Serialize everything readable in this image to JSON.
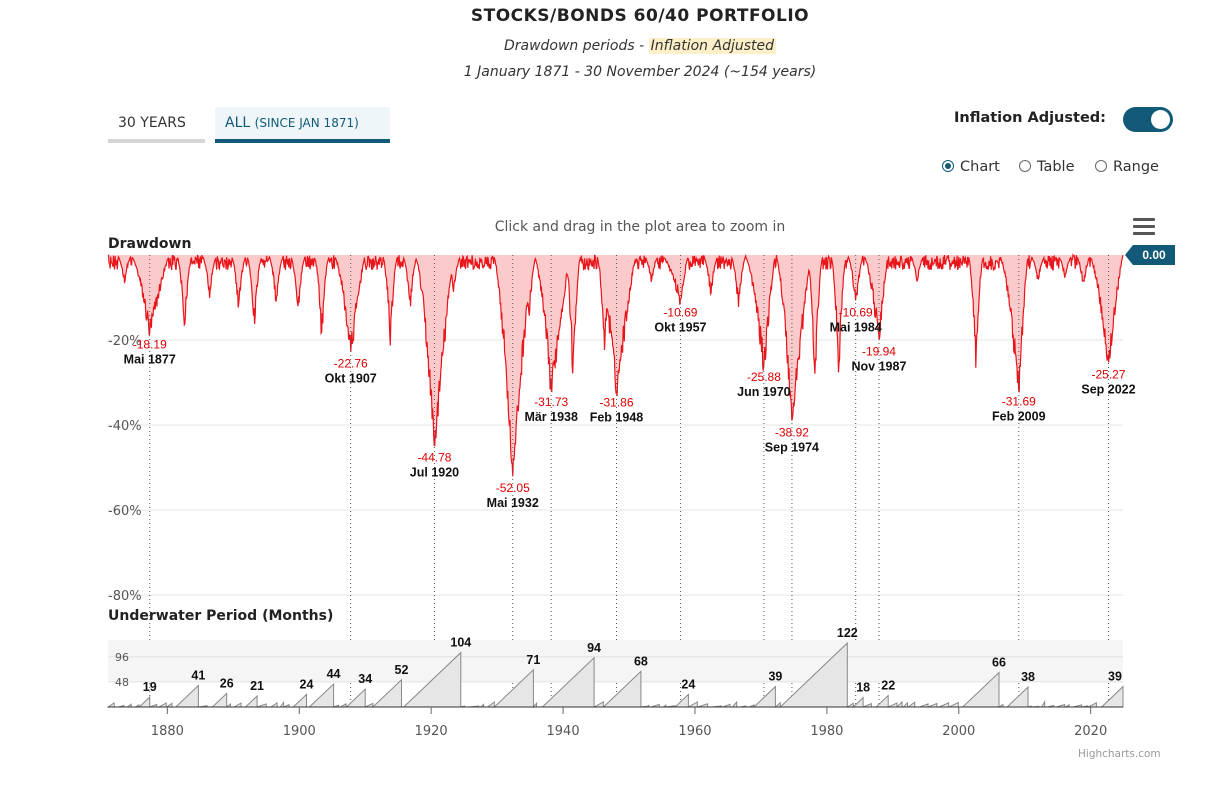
{
  "header": {
    "title": "STOCKS/BONDS 60/40 PORTFOLIO",
    "subtitle_prefix": "Drawdown periods - ",
    "subtitle_highlight": "Inflation Adjusted",
    "period": "1 January 1871 - 30 November 2024 (~154 years)"
  },
  "tabs": {
    "tab_30": "30 YEARS",
    "tab_all_main": "ALL",
    "tab_all_small": "(SINCE JAN 1871)"
  },
  "toggle": {
    "label": "Inflation Adjusted:",
    "checked": true
  },
  "view_options": {
    "chart": "Chart",
    "table": "Table",
    "range": "Range",
    "selected": "Chart"
  },
  "hint": "Click and drag in the plot area to zoom in",
  "credit": "Highcharts.com",
  "colors": {
    "accent": "#125a78",
    "drawdown_line": "#e8151b",
    "drawdown_fill": "#fbcbcb",
    "drawdown_label": "#e00000",
    "underwater_fill": "#e6e6e6",
    "underwater_line": "#888888",
    "underwater_band": "#f5f5f5"
  },
  "chart_data": [
    {
      "type": "area",
      "title": "Drawdown",
      "ylabel": "Drawdown",
      "xlim": [
        1871,
        2024.9
      ],
      "ylim": [
        -80,
        0
      ],
      "yticks": [
        -20,
        -40,
        -60,
        -80
      ],
      "ytick_labels": [
        "-20%",
        "-40%",
        "-60%",
        "-80%"
      ],
      "current_value": "0.00",
      "troughs": [
        {
          "year": 1877.33,
          "value": -18.19,
          "label": "Mai 1877",
          "value_label": "-18.19"
        },
        {
          "year": 1907.8,
          "value": -22.76,
          "label": "Okt 1907",
          "value_label": "-22.76"
        },
        {
          "year": 1920.5,
          "value": -44.78,
          "label": "Jul 1920",
          "value_label": "-44.78"
        },
        {
          "year": 1932.37,
          "value": -52.05,
          "label": "Mai 1932",
          "value_label": "-52.05"
        },
        {
          "year": 1938.2,
          "value": -31.73,
          "label": "Mär 1938",
          "value_label": "-31.73"
        },
        {
          "year": 1948.1,
          "value": -31.86,
          "label": "Feb 1948",
          "value_label": "-31.86"
        },
        {
          "year": 1957.8,
          "value": -10.69,
          "label": "Okt 1957",
          "value_label": "-10.69"
        },
        {
          "year": 1970.45,
          "value": -25.88,
          "label": "Jun 1970",
          "value_label": "-25.88"
        },
        {
          "year": 1974.7,
          "value": -38.92,
          "label": "Sep 1974",
          "value_label": "-38.92"
        },
        {
          "year": 1984.37,
          "value": -10.69,
          "label": "Mai 1984",
          "value_label": "-10.69"
        },
        {
          "year": 1987.9,
          "value": -19.94,
          "label": "Nov 1987",
          "value_label": "-19.94"
        },
        {
          "year": 2009.1,
          "value": -31.69,
          "label": "Feb 2009",
          "value_label": "-31.69"
        },
        {
          "year": 2022.7,
          "value": -25.27,
          "label": "Sep 2022",
          "value_label": "-25.27"
        }
      ]
    },
    {
      "type": "area",
      "title": "Underwater Period (Months)",
      "ylabel": "Underwater Period (Months)",
      "xlim": [
        1871,
        2024.9
      ],
      "ylim": [
        0,
        128
      ],
      "yticks": [
        48,
        96
      ],
      "ytick_labels": [
        "48",
        "96"
      ],
      "xticks": [
        1880,
        1900,
        1920,
        1940,
        1960,
        1980,
        2000,
        2020
      ],
      "xtick_labels": [
        "1880",
        "1900",
        "1920",
        "1940",
        "1960",
        "1980",
        "2000",
        "2020"
      ],
      "periods": [
        {
          "end": 1877.33,
          "months": 19,
          "label": "19"
        },
        {
          "end": 1884.7,
          "months": 41,
          "label": "41"
        },
        {
          "end": 1889.0,
          "months": 26,
          "label": "26"
        },
        {
          "end": 1893.6,
          "months": 21,
          "label": "21"
        },
        {
          "end": 1901.1,
          "months": 24,
          "label": "24"
        },
        {
          "end": 1905.2,
          "months": 44,
          "label": "44"
        },
        {
          "end": 1910.0,
          "months": 34,
          "label": "34"
        },
        {
          "end": 1915.5,
          "months": 52,
          "label": "52"
        },
        {
          "end": 1924.5,
          "months": 104,
          "label": "104"
        },
        {
          "end": 1935.5,
          "months": 71,
          "label": "71"
        },
        {
          "end": 1944.7,
          "months": 94,
          "label": "94"
        },
        {
          "end": 1951.8,
          "months": 68,
          "label": "68"
        },
        {
          "end": 1959.0,
          "months": 24,
          "label": "24"
        },
        {
          "end": 1972.2,
          "months": 39,
          "label": "39"
        },
        {
          "end": 1983.1,
          "months": 122,
          "label": "122"
        },
        {
          "end": 1985.5,
          "months": 18,
          "label": "18"
        },
        {
          "end": 1989.3,
          "months": 22,
          "label": "22"
        },
        {
          "end": 2006.1,
          "months": 66,
          "label": "66"
        },
        {
          "end": 2010.5,
          "months": 38,
          "label": "38"
        },
        {
          "end": 2024.9,
          "months": 39,
          "label": "39"
        }
      ]
    }
  ]
}
